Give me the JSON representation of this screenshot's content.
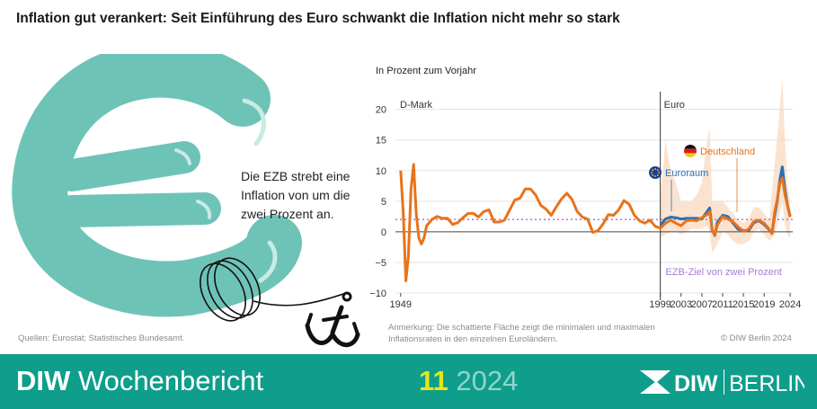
{
  "title": "Inflation gut verankert: Seit Einführung des Euro schwankt die Inflation nicht mehr so stark",
  "illustration": {
    "text": "Die EZB strebt eine Inflation von um die zwei Prozent an."
  },
  "colors": {
    "teal": "#6ec3b7",
    "orange": "#e8731a",
    "blue": "#2a70b3",
    "band": "#fbe3d0",
    "target": "#a67ad6",
    "footer": "#0e9e8b"
  },
  "chart_data": {
    "type": "line",
    "unit_label": "In Prozent zum Vorjahr",
    "xlim": [
      1948,
      2024.5
    ],
    "ylim": [
      -10,
      22
    ],
    "y_ticks": [
      "20",
      "15",
      "10",
      "5",
      "0",
      "−5",
      "−10"
    ],
    "y_tick_values": [
      20,
      15,
      10,
      5,
      0,
      -5,
      -10
    ],
    "x_ticks": [
      "1949",
      "1999",
      "2003",
      "2007",
      "2011",
      "2015",
      "2019",
      "2024"
    ],
    "x_tick_values": [
      1949,
      1999,
      2003,
      2007,
      2011,
      2015,
      2019,
      2024
    ],
    "period_labels": {
      "before": "D-Mark",
      "after": "Euro"
    },
    "period_divider_year": 1999,
    "target": {
      "value": 2,
      "label": "EZB-Ziel von zwei Prozent"
    },
    "series": [
      {
        "name": "Deutschland",
        "x": [
          1949,
          1949.5,
          1950,
          1950.5,
          1951,
          1951.5,
          1952,
          1952.5,
          1953,
          1953.5,
          1954,
          1955,
          1956,
          1957,
          1958,
          1959,
          1960,
          1961,
          1962,
          1963,
          1964,
          1965,
          1966,
          1967,
          1968,
          1969,
          1970,
          1971,
          1972,
          1973,
          1974,
          1975,
          1976,
          1977,
          1978,
          1979,
          1980,
          1981,
          1982,
          1983,
          1984,
          1985,
          1986,
          1987,
          1988,
          1989,
          1990,
          1991,
          1992,
          1993,
          1994,
          1995,
          1996,
          1997,
          1998,
          1999,
          2000,
          2001,
          2002,
          2003,
          2004,
          2005,
          2006,
          2007,
          2008,
          2008.5,
          2009,
          2009.5,
          2010,
          2011,
          2012,
          2013,
          2014,
          2015,
          2016,
          2017,
          2018,
          2019,
          2020,
          2020.5,
          2021,
          2021.5,
          2022,
          2022.5,
          2023,
          2023.5,
          2024
        ],
        "values": [
          10,
          3,
          -8,
          -4,
          7,
          11,
          3,
          -1,
          -2,
          -1,
          1,
          2,
          2.5,
          2.2,
          2.2,
          1.2,
          1.5,
          2.3,
          3,
          3,
          2.4,
          3.3,
          3.6,
          1.6,
          1.6,
          1.9,
          3.6,
          5.2,
          5.5,
          7,
          7,
          6,
          4.3,
          3.7,
          2.7,
          4.1,
          5.4,
          6.3,
          5.3,
          3.3,
          2.4,
          2.1,
          -0.1,
          0.2,
          1.3,
          2.8,
          2.7,
          3.6,
          5.1,
          4.5,
          2.7,
          1.8,
          1.4,
          1.9,
          0.9,
          0.6,
          1.4,
          1.9,
          1.4,
          1,
          1.8,
          1.9,
          1.8,
          2.3,
          2.8,
          3.3,
          0.2,
          -0.5,
          1.1,
          2.5,
          2.1,
          1.6,
          0.8,
          0.1,
          0.4,
          1.7,
          1.9,
          1.4,
          0.4,
          -0.3,
          3.2,
          5.2,
          7.9,
          8.8,
          6.1,
          4.3,
          2.4
        ]
      },
      {
        "name": "Euroraum",
        "x": [
          1999,
          2000,
          2001,
          2002,
          2003,
          2004,
          2005,
          2006,
          2007,
          2008,
          2008.5,
          2009,
          2009.5,
          2010,
          2011,
          2012,
          2013,
          2014,
          2015,
          2016,
          2017,
          2018,
          2019,
          2020,
          2020.5,
          2021,
          2021.5,
          2022,
          2022.5,
          2023,
          2023.5,
          2024
        ],
        "values": [
          1.1,
          2.1,
          2.4,
          2.3,
          2.1,
          2.2,
          2.2,
          2.2,
          2.1,
          3.3,
          3.9,
          0.3,
          -0.6,
          1.6,
          2.7,
          2.5,
          1.4,
          0.4,
          0.2,
          0.2,
          1.5,
          1.8,
          1.2,
          0.3,
          -0.3,
          2.6,
          4.9,
          8.4,
          10.6,
          6.9,
          4.3,
          2.6
        ]
      }
    ],
    "band": {
      "label": "min/max der Euroländer",
      "x": [
        1999,
        2000,
        2001,
        2002,
        2003,
        2004,
        2005,
        2006,
        2007,
        2008,
        2008.5,
        2009,
        2010,
        2011,
        2012,
        2013,
        2014,
        2015,
        2016,
        2017,
        2018,
        2019,
        2020,
        2021,
        2022,
        2022.5,
        2023,
        2023.5,
        2024
      ],
      "min": [
        -1,
        -0.5,
        0,
        0,
        -0.5,
        0,
        0.5,
        0.5,
        0.5,
        1,
        0,
        -3.5,
        -2,
        0,
        -0.5,
        -1.5,
        -2,
        -2,
        -1.5,
        0,
        0.5,
        -0.5,
        -1.5,
        -0.5,
        3,
        5,
        1,
        -0.5,
        -1
      ],
      "max": [
        5,
        15,
        10,
        8,
        5,
        5,
        5,
        6,
        8,
        15,
        17,
        5,
        5,
        5,
        4,
        3,
        2,
        1.5,
        2,
        4,
        4,
        3,
        2,
        11,
        20,
        25,
        15,
        8,
        5
      ]
    },
    "legend": [
      "Deutschland",
      "Euroraum"
    ],
    "annotation": "Anmerkung: Die schattierte Fläche zeigt die minimalen und maximalen Inflationsraten in den einzelnen Euroländern."
  },
  "footer": {
    "sources": "Quellen: Eurostat; Statistisches Bundesamt.",
    "copyright": "© DIW Berlin 2024",
    "brand_bold": "DIW",
    "brand_rest": " Wochenbericht",
    "issue_number": "11",
    "issue_year": "2024",
    "logo_left": "DIW",
    "logo_right": "BERLIN"
  }
}
